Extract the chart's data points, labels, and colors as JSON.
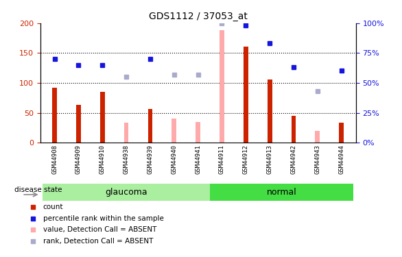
{
  "title": "GDS1112 / 37053_at",
  "samples": [
    "GSM44908",
    "GSM44909",
    "GSM44910",
    "GSM44938",
    "GSM44939",
    "GSM44940",
    "GSM44941",
    "GSM44911",
    "GSM44912",
    "GSM44913",
    "GSM44942",
    "GSM44943",
    "GSM44944"
  ],
  "glaucoma_samples": [
    "GSM44908",
    "GSM44909",
    "GSM44910",
    "GSM44938",
    "GSM44939",
    "GSM44940",
    "GSM44941"
  ],
  "normal_samples": [
    "GSM44911",
    "GSM44912",
    "GSM44913",
    "GSM44942",
    "GSM44943",
    "GSM44944"
  ],
  "count": [
    92,
    63,
    85,
    null,
    56,
    null,
    null,
    null,
    161,
    106,
    45,
    null,
    33
  ],
  "percentile_rank": [
    70,
    65,
    65,
    null,
    70,
    null,
    null,
    null,
    98,
    83,
    63,
    null,
    60
  ],
  "value_absent": [
    null,
    null,
    null,
    33,
    null,
    40,
    35,
    188,
    null,
    null,
    null,
    20,
    null
  ],
  "rank_absent": [
    null,
    null,
    null,
    55,
    null,
    57,
    57,
    100,
    null,
    null,
    null,
    43,
    null
  ],
  "count_color": "#cc2200",
  "percentile_color": "#1515dd",
  "value_absent_color": "#ffaaaa",
  "rank_absent_color": "#aaaacc",
  "glaucoma_bg": "#aaeea0",
  "normal_bg": "#44dd44",
  "plot_bg": "#ffffff",
  "xtick_bg": "#d0d0d0",
  "ylim_left": [
    0,
    200
  ],
  "ylim_right": [
    0,
    100
  ],
  "yticks_left": [
    0,
    50,
    100,
    150,
    200
  ],
  "yticks_right": [
    0,
    25,
    50,
    75,
    100
  ],
  "ytick_labels_left": [
    "0",
    "50",
    "100",
    "150",
    "200"
  ],
  "ytick_labels_right": [
    "0%",
    "25%",
    "50%",
    "75%",
    "100%"
  ],
  "hlines": [
    50,
    100,
    150
  ],
  "bar_width": 0.35,
  "square_size": 5
}
